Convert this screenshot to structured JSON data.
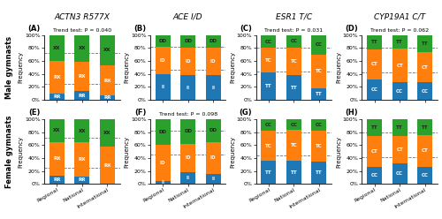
{
  "column_titles": [
    "ACTN3 R577X",
    "ACE I/D",
    "ESR1 T/C",
    "CYP19A1 C/T"
  ],
  "row_labels": [
    "Male gymnasts",
    "Female gymnasts"
  ],
  "chart_data": [
    {
      "type": "bar",
      "stacked": true,
      "title": "(A)",
      "subtitle": "Trend test: P = 0.040",
      "categories": [
        "Regional",
        "National",
        "International"
      ],
      "ylabel": "Frequency",
      "ylim": [
        0,
        100
      ],
      "yticks": [
        {
          "value": 0,
          "label": "0%"
        },
        {
          "value": 20,
          "label": "20%"
        },
        {
          "value": 40,
          "label": "40%"
        },
        {
          "value": 60,
          "label": "60%"
        },
        {
          "value": 80,
          "label": "80%"
        },
        {
          "value": 100,
          "label": "100%"
        }
      ],
      "tick_labels": "y",
      "reference_lines": [
        25,
        72
      ],
      "series": [
        {
          "color": "#1f77b4",
          "values": [
            10,
            13,
            7
          ],
          "segment_labels": [
            "RR",
            "RR",
            "RR"
          ]
        },
        {
          "color": "#ff7f0e",
          "values": [
            50,
            46,
            46
          ],
          "segment_labels": [
            "RX",
            "RX",
            "RX"
          ]
        },
        {
          "color": "#2ca02c",
          "values": [
            40,
            41,
            47
          ],
          "segment_labels": [
            "XX",
            "XX",
            "XX"
          ]
        }
      ]
    },
    {
      "type": "bar",
      "stacked": true,
      "title": "(B)",
      "categories": [
        "Regional",
        "National",
        "International"
      ],
      "ylabel": "Frequency",
      "ylim": [
        0,
        100
      ],
      "yticks": [
        {
          "value": 0,
          "label": "0%"
        },
        {
          "value": 20,
          "label": "20%"
        },
        {
          "value": 40,
          "label": "40%"
        },
        {
          "value": 60,
          "label": "60%"
        },
        {
          "value": 80,
          "label": "80%"
        },
        {
          "value": 100,
          "label": "100%"
        }
      ],
      "tick_labels": "y",
      "reference_lines": [
        46,
        82
      ],
      "series": [
        {
          "color": "#1f77b4",
          "values": [
            40,
            38,
            38
          ],
          "segment_labels": [
            "II",
            "II",
            "II"
          ]
        },
        {
          "color": "#ff7f0e",
          "values": [
            42,
            43,
            43
          ],
          "segment_labels": [
            "ID",
            "ID",
            "ID"
          ]
        },
        {
          "color": "#2ca02c",
          "values": [
            18,
            19,
            19
          ],
          "segment_labels": [
            "DD",
            "DD",
            "DD"
          ]
        }
      ]
    },
    {
      "type": "bar",
      "stacked": true,
      "title": "(C)",
      "subtitle": "Trend test: P = 0.031",
      "categories": [
        "Regional",
        "National",
        "International"
      ],
      "ylabel": "Frequency",
      "ylim": [
        0,
        100
      ],
      "yticks": [
        {
          "value": 0,
          "label": "0%"
        },
        {
          "value": 20,
          "label": "20%"
        },
        {
          "value": 40,
          "label": "40%"
        },
        {
          "value": 60,
          "label": "60%"
        },
        {
          "value": 80,
          "label": "80%"
        },
        {
          "value": 100,
          "label": "100%"
        }
      ],
      "tick_labels": "y",
      "reference_lines": [
        44,
        80
      ],
      "series": [
        {
          "color": "#1f77b4",
          "values": [
            42,
            38,
            18
          ],
          "segment_labels": [
            "TT",
            "TT",
            "TT"
          ]
        },
        {
          "color": "#ff7f0e",
          "values": [
            38,
            43,
            52
          ],
          "segment_labels": [
            "TC",
            "TC",
            "TC"
          ]
        },
        {
          "color": "#2ca02c",
          "values": [
            20,
            19,
            30
          ],
          "segment_labels": [
            "CC",
            "CC",
            "CC"
          ]
        }
      ]
    },
    {
      "type": "bar",
      "stacked": true,
      "title": "(D)",
      "subtitle": "Trend test: P = 0.062",
      "categories": [
        "Regional",
        "National",
        "International"
      ],
      "ylabel": "Frequency",
      "ylim": [
        0,
        100
      ],
      "yticks": [
        {
          "value": 0,
          "label": "0%"
        },
        {
          "value": 20,
          "label": "20%"
        },
        {
          "value": 40,
          "label": "40%"
        },
        {
          "value": 60,
          "label": "60%"
        },
        {
          "value": 80,
          "label": "80%"
        },
        {
          "value": 100,
          "label": "100%"
        }
      ],
      "tick_labels": "y",
      "reference_lines": [
        42,
        80
      ],
      "series": [
        {
          "color": "#1f77b4",
          "values": [
            32,
            27,
            27
          ],
          "segment_labels": [
            "CC",
            "CC",
            "CC"
          ]
        },
        {
          "color": "#ff7f0e",
          "values": [
            46,
            52,
            46
          ],
          "segment_labels": [
            "CT",
            "CT",
            "CT"
          ]
        },
        {
          "color": "#2ca02c",
          "values": [
            22,
            21,
            27
          ],
          "segment_labels": [
            "TT",
            "TT",
            "TT"
          ]
        }
      ]
    },
    {
      "type": "bar",
      "stacked": true,
      "title": "(E)",
      "categories": [
        "Regional",
        "National",
        "International"
      ],
      "ylabel": "Frequency",
      "ylim": [
        0,
        100
      ],
      "yticks": [
        {
          "value": 0,
          "label": "0%"
        },
        {
          "value": 20,
          "label": "20%"
        },
        {
          "value": 40,
          "label": "40%"
        },
        {
          "value": 60,
          "label": "60%"
        },
        {
          "value": 80,
          "label": "80%"
        },
        {
          "value": 100,
          "label": "100%"
        }
      ],
      "reference_lines": [
        25,
        72
      ],
      "series": [
        {
          "color": "#1f77b4",
          "values": [
            13,
            12,
            0
          ],
          "segment_labels": [
            "RR",
            "RR",
            null
          ]
        },
        {
          "color": "#ff7f0e",
          "values": [
            52,
            52,
            58
          ],
          "segment_labels": [
            "RX",
            "RX",
            "RX"
          ]
        },
        {
          "color": "#2ca02c",
          "values": [
            35,
            36,
            42
          ],
          "segment_labels": [
            "XX",
            "XX",
            "XX"
          ]
        }
      ]
    },
    {
      "type": "bar",
      "stacked": true,
      "title": "(F)",
      "subtitle": "Trend test: P = 0.098",
      "categories": [
        "Regional",
        "National",
        "International"
      ],
      "ylabel": "Frequency",
      "ylim": [
        0,
        100
      ],
      "yticks": [
        {
          "value": 0,
          "label": "0%"
        },
        {
          "value": 20,
          "label": "20%"
        },
        {
          "value": 40,
          "label": "40%"
        },
        {
          "value": 60,
          "label": "60%"
        },
        {
          "value": 80,
          "label": "80%"
        },
        {
          "value": 100,
          "label": "100%"
        }
      ],
      "reference_lines": [
        46,
        82
      ],
      "series": [
        {
          "color": "#1f77b4",
          "values": [
            5,
            18,
            15
          ],
          "segment_labels": [
            "II",
            "II",
            "II"
          ]
        },
        {
          "color": "#ff7f0e",
          "values": [
            55,
            44,
            50
          ],
          "segment_labels": [
            "ID",
            "ID",
            "ID"
          ]
        },
        {
          "color": "#2ca02c",
          "values": [
            40,
            38,
            35
          ],
          "segment_labels": [
            "DD",
            "DD",
            "DD"
          ]
        }
      ]
    },
    {
      "type": "bar",
      "stacked": true,
      "title": "(G)",
      "categories": [
        "Regional",
        "National",
        "International"
      ],
      "ylabel": "Frequency",
      "ylim": [
        0,
        100
      ],
      "yticks": [
        {
          "value": 0,
          "label": "0%"
        },
        {
          "value": 20,
          "label": "20%"
        },
        {
          "value": 40,
          "label": "40%"
        },
        {
          "value": 60,
          "label": "60%"
        },
        {
          "value": 80,
          "label": "80%"
        },
        {
          "value": 100,
          "label": "100%"
        }
      ],
      "reference_lines": [
        44,
        80
      ],
      "series": [
        {
          "color": "#1f77b4",
          "values": [
            36,
            36,
            35
          ],
          "segment_labels": [
            "TT",
            "TT",
            "TT"
          ]
        },
        {
          "color": "#ff7f0e",
          "values": [
            46,
            47,
            47
          ],
          "segment_labels": [
            "TC",
            "TC",
            "TC"
          ]
        },
        {
          "color": "#2ca02c",
          "values": [
            18,
            17,
            18
          ],
          "segment_labels": [
            "CC",
            "CC",
            "CC"
          ]
        }
      ]
    },
    {
      "type": "bar",
      "stacked": true,
      "title": "(H)",
      "categories": [
        "Regional",
        "National",
        "International"
      ],
      "ylabel": "Frequency",
      "ylim": [
        0,
        100
      ],
      "yticks": [
        {
          "value": 0,
          "label": "0%"
        },
        {
          "value": 20,
          "label": "20%"
        },
        {
          "value": 40,
          "label": "40%"
        },
        {
          "value": 60,
          "label": "60%"
        },
        {
          "value": 80,
          "label": "80%"
        },
        {
          "value": 100,
          "label": "100%"
        }
      ],
      "reference_lines": [
        42,
        80
      ],
      "series": [
        {
          "color": "#1f77b4",
          "values": [
            27,
            32,
            27
          ],
          "segment_labels": [
            "CC",
            "CC",
            "CC"
          ]
        },
        {
          "color": "#ff7f0e",
          "values": [
            47,
            42,
            48
          ],
          "segment_labels": [
            "CT",
            "CT",
            "CT"
          ]
        },
        {
          "color": "#2ca02c",
          "values": [
            26,
            26,
            25
          ],
          "segment_labels": [
            "TT",
            "TT",
            "TT"
          ]
        }
      ]
    }
  ]
}
